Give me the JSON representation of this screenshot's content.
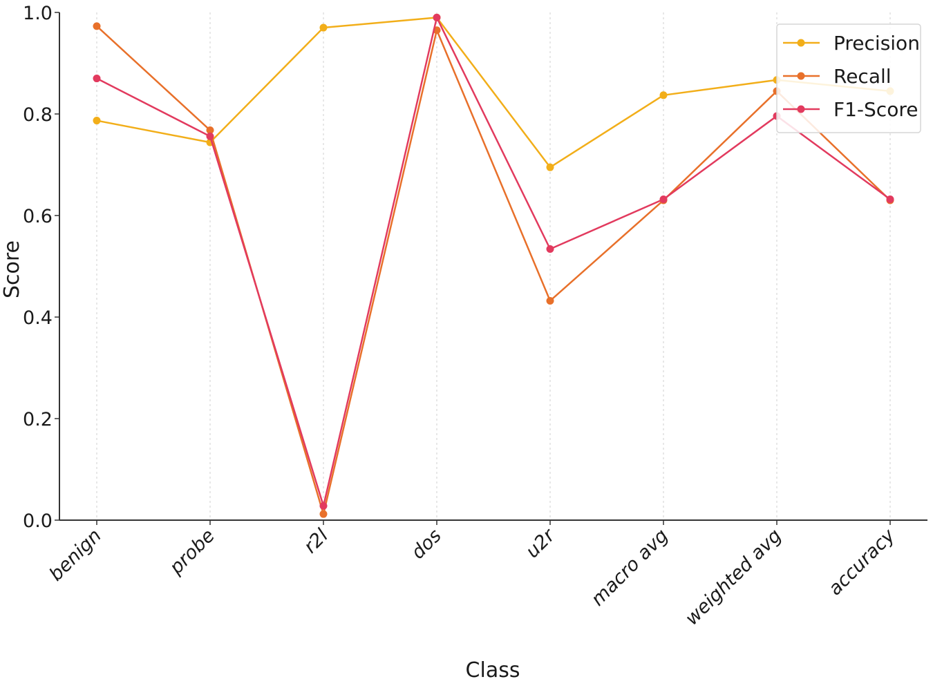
{
  "chart_data": {
    "type": "line",
    "title": "",
    "xlabel": "Class",
    "ylabel": "Score",
    "ylim": [
      0.0,
      1.0
    ],
    "yticks": [
      "0.0",
      "0.2",
      "0.4",
      "0.6",
      "0.8",
      "1.0"
    ],
    "grid": "vertical dashed",
    "legend_position": "top-right",
    "categories": [
      "benign",
      "probe",
      "r2l",
      "dos",
      "u2r",
      "macro avg",
      "weighted avg",
      "accuracy"
    ],
    "series": [
      {
        "name": "Precision",
        "color": "#f2ae19",
        "values": [
          0.787,
          0.744,
          0.97,
          0.99,
          0.695,
          0.837,
          0.867,
          0.845
        ]
      },
      {
        "name": "Recall",
        "color": "#e8702a",
        "values": [
          0.973,
          0.768,
          0.012,
          0.965,
          0.432,
          0.63,
          0.845,
          0.63
        ]
      },
      {
        "name": "F1-Score",
        "color": "#e23a5e",
        "values": [
          0.87,
          0.756,
          0.028,
          0.99,
          0.534,
          0.632,
          0.796,
          0.632
        ]
      }
    ]
  }
}
